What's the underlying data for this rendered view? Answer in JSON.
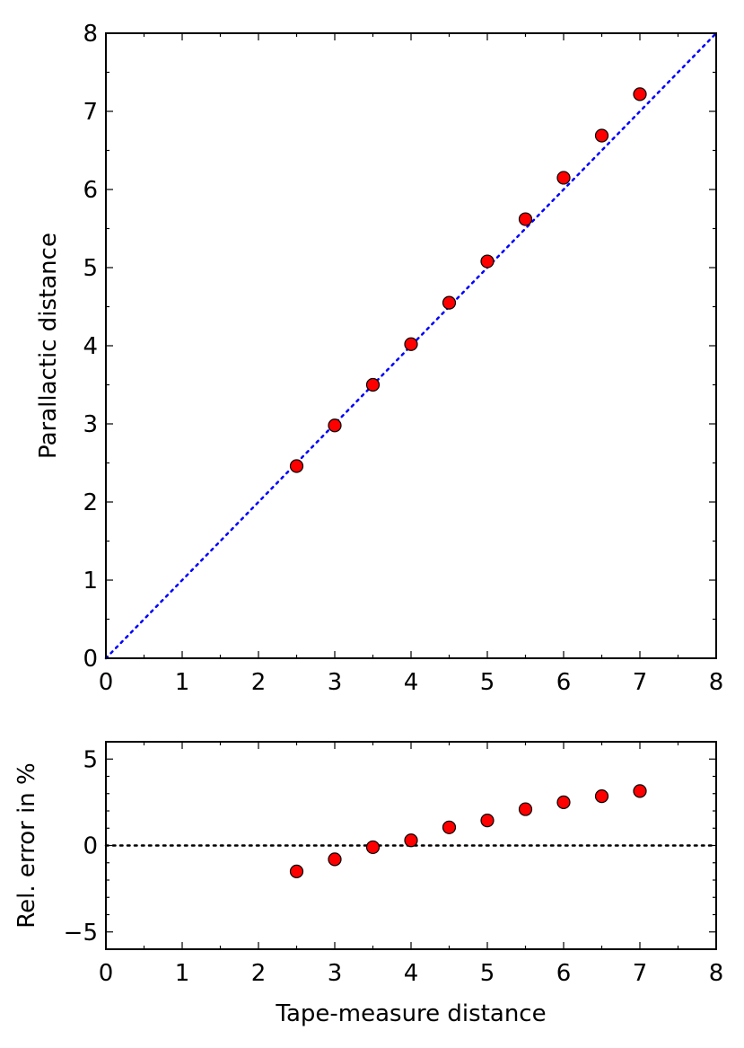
{
  "chart_data": [
    {
      "type": "scatter",
      "name": "main",
      "title": "",
      "xlabel": "",
      "ylabel": "Parallactic distance",
      "xlim": [
        0,
        8
      ],
      "ylim": [
        0,
        8
      ],
      "xticks": [
        "0",
        "1",
        "2",
        "3",
        "4",
        "5",
        "6",
        "7",
        "8"
      ],
      "yticks": [
        "0",
        "1",
        "2",
        "3",
        "4",
        "5",
        "6",
        "7",
        "8"
      ],
      "series": [
        {
          "name": "measurements",
          "marker": "circle",
          "color": "#ff0000",
          "x": [
            2.5,
            3.0,
            3.5,
            4.0,
            4.5,
            5.0,
            5.5,
            6.0,
            6.5,
            7.0
          ],
          "y": [
            2.46,
            2.98,
            3.5,
            4.02,
            4.55,
            5.08,
            5.62,
            6.15,
            6.69,
            7.22
          ]
        }
      ],
      "reference_line": {
        "style": "dotted",
        "color": "#0000ff",
        "from": [
          0,
          0
        ],
        "to": [
          8,
          8
        ]
      },
      "grid": false
    },
    {
      "type": "scatter",
      "name": "residual",
      "title": "",
      "xlabel": "Tape-measure distance",
      "ylabel": "Rel. error in %",
      "xlim": [
        0,
        8
      ],
      "ylim": [
        -6,
        6
      ],
      "xticks": [
        "0",
        "1",
        "2",
        "3",
        "4",
        "5",
        "6",
        "7",
        "8"
      ],
      "yticks": [
        {
          "value": 5,
          "label": "5"
        },
        {
          "value": 0,
          "label": "0"
        },
        {
          "value": -5,
          "label": "−5"
        }
      ],
      "series": [
        {
          "name": "relative-error",
          "marker": "circle",
          "color": "#ff0000",
          "x": [
            2.5,
            3.0,
            3.5,
            4.0,
            4.5,
            5.0,
            5.5,
            6.0,
            6.5,
            7.0
          ],
          "y": [
            -1.5,
            -0.8,
            -0.1,
            0.3,
            1.05,
            1.45,
            2.1,
            2.5,
            2.85,
            3.15
          ]
        }
      ],
      "reference_line": {
        "style": "dotted",
        "color": "#000000",
        "y": 0
      },
      "grid": false
    }
  ]
}
